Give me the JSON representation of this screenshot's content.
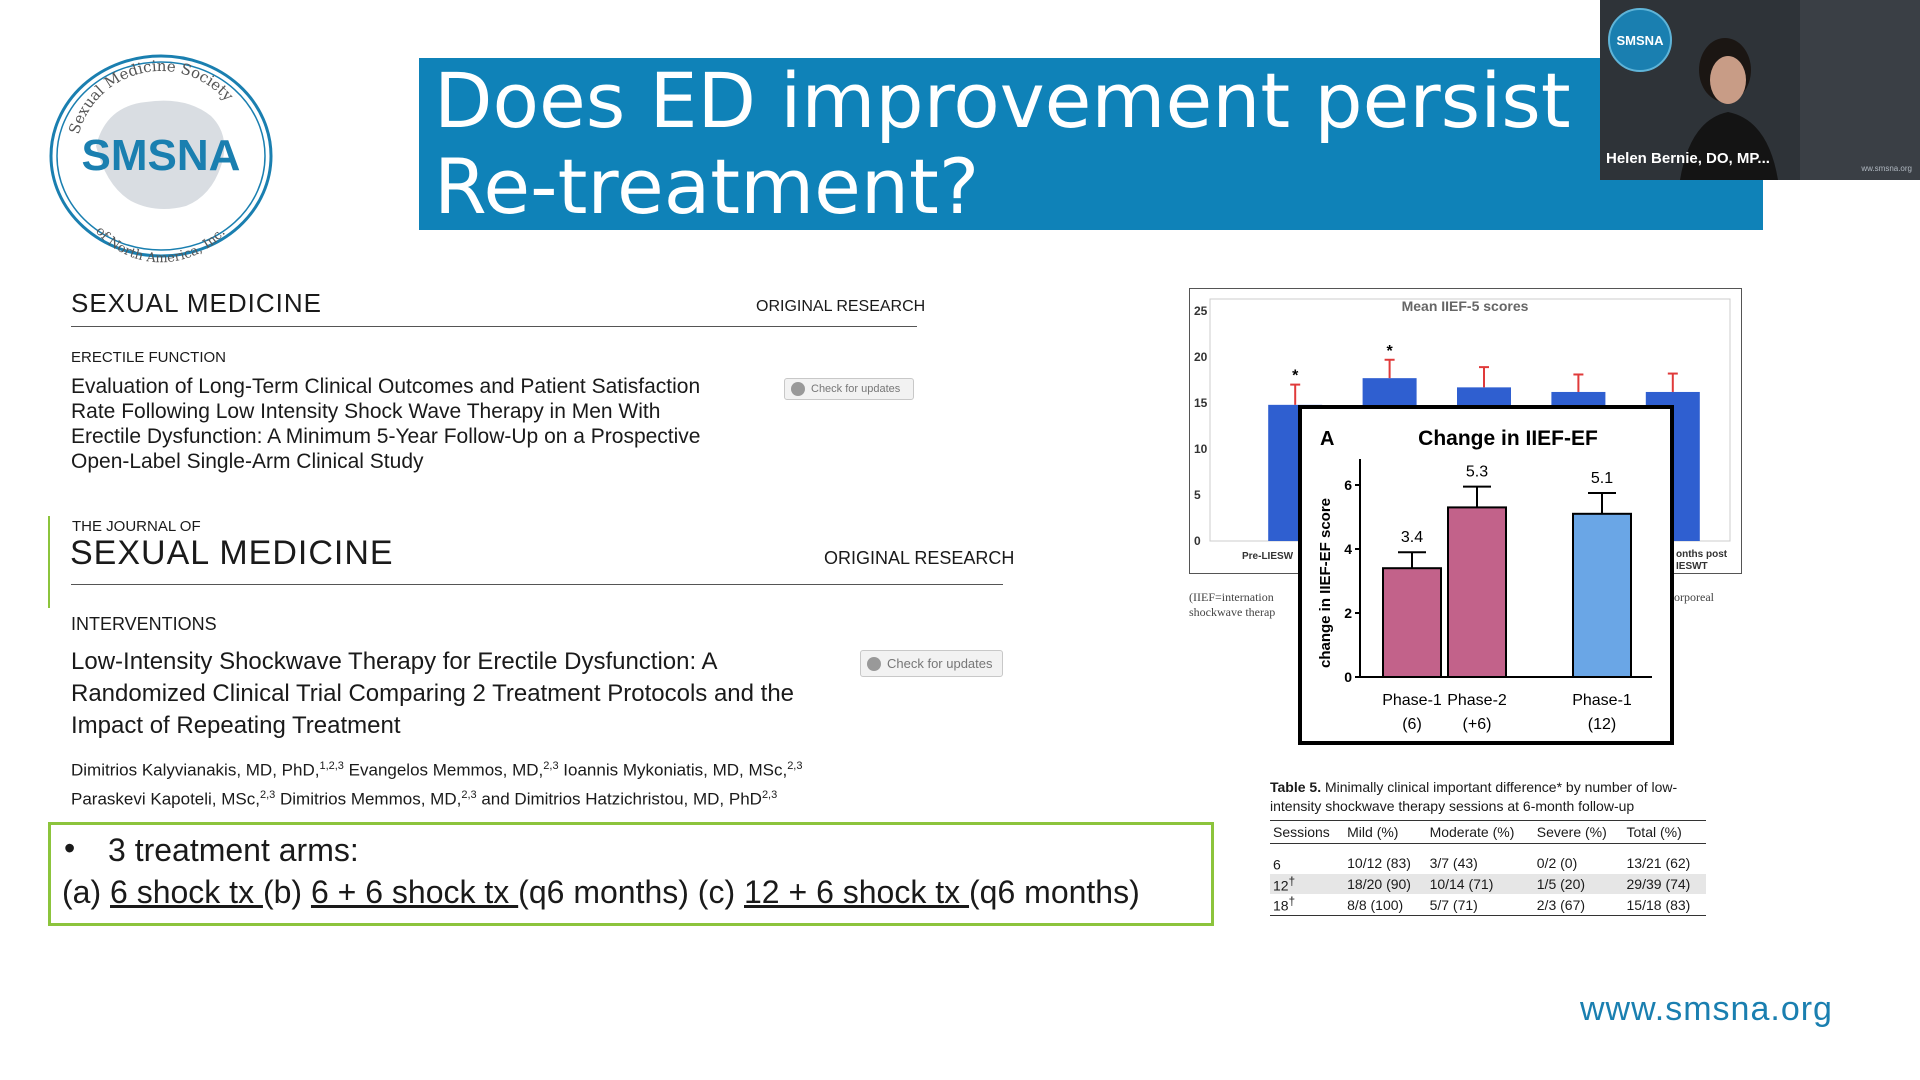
{
  "logo": {
    "top_text": "Sexual Medicine Society",
    "center_text": "SMSNA",
    "bottom_text": "of North America, Inc."
  },
  "slide": {
    "title": "Does ED improvement persist\nRe-treatment?"
  },
  "video": {
    "badge": "SMSNA",
    "participant_name": "Helen Bernie, DO, MP...",
    "url": "ww.smsna.org"
  },
  "paper1": {
    "journal": "SEXUAL MEDICINE",
    "type": "ORIGINAL RESEARCH",
    "section": "ERECTILE FUNCTION",
    "title_lines": [
      "Evaluation of Long-Term Clinical Outcomes and Patient Satisfaction",
      "Rate Following Low Intensity Shock Wave Therapy in Men With",
      "Erectile Dysfunction: A Minimum 5-Year Follow-Up on a Prospective",
      "Open-Label Single-Arm Clinical Study"
    ],
    "check_label": "Check for updates"
  },
  "paper2": {
    "journal_small": "THE JOURNAL OF",
    "journal_big": "SEXUAL MEDICINE",
    "type": "ORIGINAL RESEARCH",
    "section": "INTERVENTIONS",
    "title_lines": [
      "Low-Intensity Shockwave Therapy for Erectile Dysfunction: A",
      "Randomized Clinical Trial Comparing 2 Treatment Protocols and the",
      "Impact of Repeating Treatment"
    ],
    "check_label": "Check for updates",
    "authors_line1": "Dimitrios Kalyvianakis, MD, PhD,",
    "authors_line1_sup": "1,2,3",
    "authors_line1b": " Evangelos Memmos, MD,",
    "authors_line1b_sup": "2,3",
    "authors_line1c": " Ioannis Mykoniatis, MD, MSc,",
    "authors_line1c_sup": "2,3",
    "authors_line2": "Paraskevi Kapoteli, MSc,",
    "authors_line2_sup": "2,3",
    "authors_line2b": " Dimitrios Memmos, MD,",
    "authors_line2b_sup": "2,3",
    "authors_line2c": " and Dimitrios Hatzichristou, MD, PhD",
    "authors_line2c_sup": "2,3"
  },
  "arms": {
    "bullet": "•",
    "heading": "3 treatment arms:",
    "a_prefix": "(a) ",
    "a": "6 shock tx ",
    "b_prefix": "(b) ",
    "b": "6 + 6 shock tx ",
    "b_suffix": "(q6 months) ",
    "c_prefix": "(c) ",
    "c": "12 + 6 shock tx ",
    "c_suffix": "(q6 months)"
  },
  "chart_data": [
    {
      "type": "bar",
      "title": "Mean IIEF-5 scores",
      "ylim": [
        0,
        25
      ],
      "yticks": [
        0,
        5,
        10,
        15,
        20,
        25
      ],
      "visible_x_labels": [
        "Pre-LIESW",
        "onths post",
        "IESWT"
      ],
      "values": [
        14.8,
        17.7,
        16.7,
        16.2,
        16.2
      ],
      "errors": [
        2.2,
        2.0,
        2.2,
        1.9,
        2.0
      ],
      "significance": [
        "*",
        "*",
        "",
        "",
        ""
      ],
      "bar_color": "#2f5fd0",
      "error_color": "#e03a3a",
      "caption_left": [
        "(IIEF=internation",
        "shockwave therap"
      ],
      "caption_right": "orporeal"
    },
    {
      "type": "bar",
      "panel": "A",
      "title": "Change in IIEF-EF",
      "ylabel": "change in IIEF-EF score",
      "ylim": [
        0,
        6.5
      ],
      "yticks": [
        0,
        2,
        4,
        6
      ],
      "categories": [
        {
          "line1": "Phase-1",
          "line2": "(6)"
        },
        {
          "line1": "Phase-2",
          "line2": "(+6)"
        },
        {
          "line1": "Phase-1",
          "line2": "(12)"
        }
      ],
      "values": [
        3.4,
        5.3,
        5.1
      ],
      "errors": [
        0.5,
        0.65,
        0.65
      ],
      "value_labels": [
        "3.4",
        "5.3",
        "5.1"
      ],
      "colors": [
        "#c2628a",
        "#c2628a",
        "#6aa6e6"
      ]
    }
  ],
  "table5": {
    "caption_bold": "Table 5.",
    "caption_line1": " Minimally clinical important difference* by number of low-",
    "caption_line2": "intensity shockwave therapy sessions at 6-month follow-up",
    "headers": [
      "Sessions",
      "Mild (%)",
      "Moderate (%)",
      "Severe (%)",
      "Total (%)"
    ],
    "rows": [
      {
        "sessions": "6",
        "sup": "",
        "mild": "10/12 (83)",
        "moderate": "3/7 (43)",
        "severe": "0/2 (0)",
        "total": "13/21 (62)"
      },
      {
        "sessions": "12",
        "sup": "†",
        "mild": "18/20 (90)",
        "moderate": "10/14 (71)",
        "severe": "1/5 (20)",
        "total": "29/39 (74)"
      },
      {
        "sessions": "18",
        "sup": "†",
        "mild": "8/8 (100)",
        "moderate": "5/7 (71)",
        "severe": "2/3 (67)",
        "total": "15/18 (83)"
      }
    ]
  },
  "footer": {
    "url": "www.smsna.org"
  },
  "colors": {
    "brand_blue": "#0f82b8",
    "accent_green": "#8cc43c"
  }
}
